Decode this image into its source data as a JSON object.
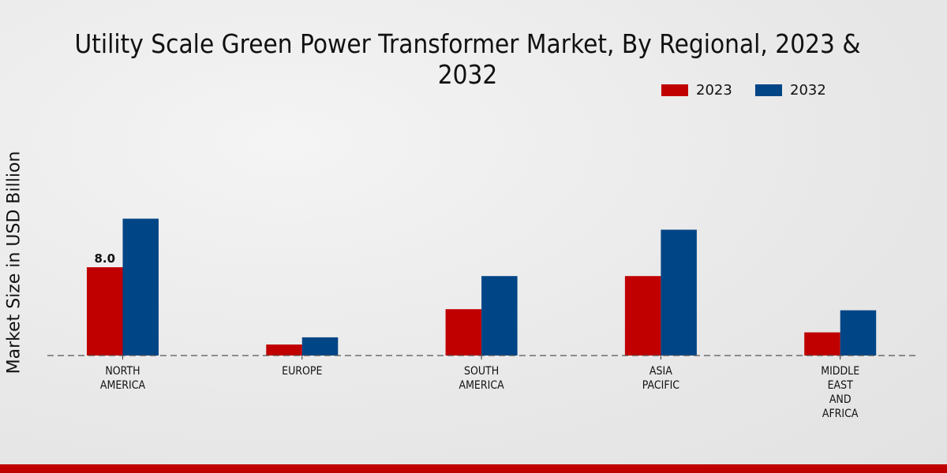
{
  "chart_data": {
    "type": "bar",
    "title": "Utility Scale Green Power Transformer Market, By Regional, 2023 & 2032",
    "xlabel": "",
    "ylabel": "Market Size in USD Billion",
    "categories": [
      [
        "NORTH",
        "AMERICA"
      ],
      [
        "EUROPE"
      ],
      [
        "SOUTH",
        "AMERICA"
      ],
      [
        "ASIA",
        "PACIFIC"
      ],
      [
        "MIDDLE",
        "EAST",
        "AND",
        "AFRICA"
      ]
    ],
    "series": [
      {
        "name": "2023",
        "color": "#c00000",
        "values": [
          8.0,
          1.0,
          4.2,
          7.2,
          2.1
        ]
      },
      {
        "name": "2032",
        "color": "#004586",
        "values": [
          12.4,
          1.65,
          7.2,
          11.4,
          4.1
        ]
      }
    ],
    "data_labels": [
      {
        "series": 0,
        "index": 0,
        "text": "8.0"
      }
    ],
    "ylim": [
      0,
      14
    ],
    "grid": false,
    "legend": "top-right"
  }
}
